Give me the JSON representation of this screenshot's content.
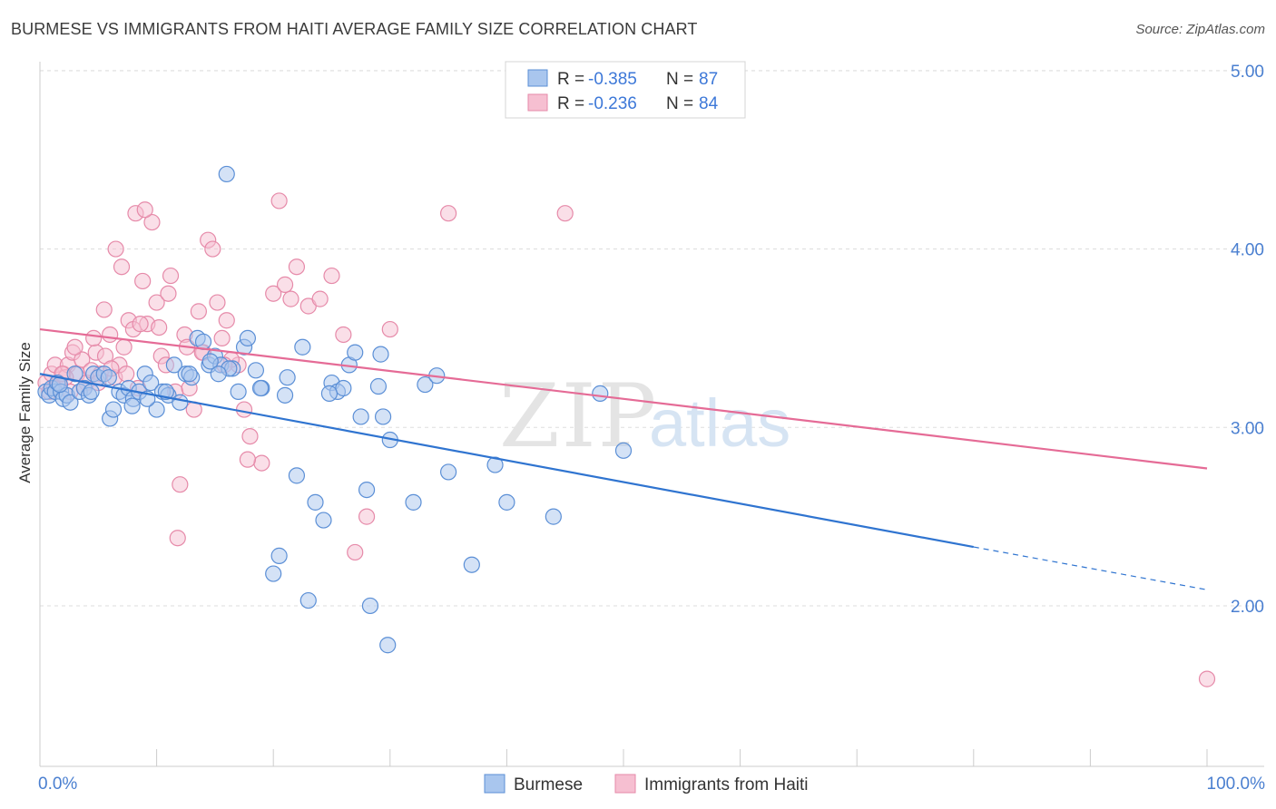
{
  "title": "BURMESE VS IMMIGRANTS FROM HAITI AVERAGE FAMILY SIZE CORRELATION CHART",
  "source": "Source: ZipAtlas.com",
  "watermark": {
    "part1": "ZIP",
    "part2": "atlas"
  },
  "colors": {
    "blue_fill": "#a9c6ee",
    "blue_stroke": "#5b8fd6",
    "blue_line": "#2f74d0",
    "pink_fill": "#f6bfd1",
    "pink_stroke": "#e68aa9",
    "pink_line": "#e56b96",
    "tick_label": "#4a7fd0",
    "grid": "#dddddd"
  },
  "legend": {
    "rows": [
      {
        "r_label": "R = ",
        "r_value": "-0.385",
        "n_label": "N = ",
        "n_value": "87",
        "color": "blue"
      },
      {
        "r_label": "R = ",
        "r_value": "-0.236",
        "n_label": "N = ",
        "n_value": "84",
        "color": "pink"
      }
    ]
  },
  "chart_data": {
    "type": "scatter",
    "title": "BURMESE VS IMMIGRANTS FROM HAITI AVERAGE FAMILY SIZE CORRELATION CHART",
    "xlabel": "",
    "ylabel": "Average Family Size",
    "x_tick_labels": [
      "0.0%",
      "100.0%"
    ],
    "y_ticks": [
      2.0,
      3.0,
      4.0,
      5.0
    ],
    "y_tick_labels": [
      "2.00",
      "3.00",
      "4.00",
      "5.00"
    ],
    "xlim": [
      0,
      100
    ],
    "ylim": [
      1.1,
      5.05
    ],
    "grid": "horizontal dashed",
    "legend_position": "top-center",
    "series": [
      {
        "name": "Burmese",
        "color": "blue",
        "trend": {
          "x0": 0,
          "y0": 3.3,
          "x1": 80,
          "y1": 2.33,
          "dashed_to_x": 100,
          "dashed_to_y": 2.09
        },
        "points": [
          [
            0.5,
            3.2
          ],
          [
            0.8,
            3.18
          ],
          [
            1.0,
            3.22
          ],
          [
            1.3,
            3.2
          ],
          [
            1.5,
            3.25
          ],
          [
            1.8,
            3.2
          ],
          [
            2.0,
            3.16
          ],
          [
            2.3,
            3.18
          ],
          [
            2.6,
            3.14
          ],
          [
            3.0,
            3.3
          ],
          [
            3.4,
            3.2
          ],
          [
            3.8,
            3.22
          ],
          [
            4.2,
            3.18
          ],
          [
            4.6,
            3.3
          ],
          [
            5.0,
            3.28
          ],
          [
            5.5,
            3.3
          ],
          [
            6.0,
            3.05
          ],
          [
            6.3,
            3.1
          ],
          [
            6.8,
            3.2
          ],
          [
            7.2,
            3.18
          ],
          [
            7.6,
            3.22
          ],
          [
            8.0,
            3.16
          ],
          [
            8.5,
            3.2
          ],
          [
            9.0,
            3.3
          ],
          [
            9.5,
            3.25
          ],
          [
            10.0,
            3.1
          ],
          [
            10.5,
            3.2
          ],
          [
            11.0,
            3.18
          ],
          [
            11.5,
            3.35
          ],
          [
            12.0,
            3.14
          ],
          [
            12.5,
            3.3
          ],
          [
            13.0,
            3.28
          ],
          [
            13.5,
            3.5
          ],
          [
            14.0,
            3.48
          ],
          [
            14.5,
            3.35
          ],
          [
            15.0,
            3.4
          ],
          [
            15.5,
            3.35
          ],
          [
            16.0,
            4.42
          ],
          [
            16.5,
            3.33
          ],
          [
            17.0,
            3.2
          ],
          [
            17.5,
            3.45
          ],
          [
            17.8,
            3.5
          ],
          [
            18.5,
            3.32
          ],
          [
            19.0,
            3.22
          ],
          [
            20.0,
            2.18
          ],
          [
            20.5,
            2.28
          ],
          [
            21.0,
            3.18
          ],
          [
            22.0,
            2.73
          ],
          [
            22.5,
            3.45
          ],
          [
            23.0,
            2.03
          ],
          [
            23.6,
            2.58
          ],
          [
            24.3,
            2.48
          ],
          [
            25.0,
            3.25
          ],
          [
            25.5,
            3.2
          ],
          [
            26.0,
            3.22
          ],
          [
            26.5,
            3.35
          ],
          [
            27.0,
            3.42
          ],
          [
            27.5,
            3.06
          ],
          [
            28.0,
            2.65
          ],
          [
            28.3,
            2.0
          ],
          [
            29.0,
            3.23
          ],
          [
            29.2,
            3.41
          ],
          [
            29.4,
            3.06
          ],
          [
            29.8,
            1.78
          ],
          [
            30.0,
            2.93
          ],
          [
            32.0,
            2.58
          ],
          [
            33.0,
            3.24
          ],
          [
            34.0,
            3.29
          ],
          [
            35.0,
            2.75
          ],
          [
            37.0,
            2.23
          ],
          [
            39.0,
            2.79
          ],
          [
            40.0,
            2.58
          ],
          [
            44.0,
            2.5
          ],
          [
            48.0,
            3.19
          ],
          [
            50.0,
            2.87
          ],
          [
            14.6,
            3.37
          ],
          [
            16.2,
            3.33
          ],
          [
            10.8,
            3.2
          ],
          [
            5.9,
            3.28
          ],
          [
            4.4,
            3.2
          ],
          [
            7.9,
            3.12
          ],
          [
            9.2,
            3.16
          ],
          [
            12.8,
            3.3
          ],
          [
            15.3,
            3.3
          ],
          [
            18.9,
            3.22
          ],
          [
            21.2,
            3.28
          ],
          [
            24.8,
            3.19
          ],
          [
            1.7,
            3.24
          ]
        ]
      },
      {
        "name": "Immigrants from Haiti",
        "color": "pink",
        "trend": {
          "x0": 0,
          "y0": 3.55,
          "x1": 100,
          "y1": 2.77
        },
        "points": [
          [
            0.5,
            3.25
          ],
          [
            0.8,
            3.2
          ],
          [
            1.0,
            3.3
          ],
          [
            1.3,
            3.35
          ],
          [
            1.6,
            3.25
          ],
          [
            2.0,
            3.3
          ],
          [
            2.4,
            3.35
          ],
          [
            2.8,
            3.42
          ],
          [
            3.2,
            3.3
          ],
          [
            3.6,
            3.38
          ],
          [
            4.0,
            3.25
          ],
          [
            4.4,
            3.32
          ],
          [
            4.8,
            3.42
          ],
          [
            5.2,
            3.3
          ],
          [
            5.6,
            3.4
          ],
          [
            6.0,
            3.52
          ],
          [
            6.4,
            3.28
          ],
          [
            6.8,
            3.35
          ],
          [
            7.2,
            3.45
          ],
          [
            7.6,
            3.6
          ],
          [
            8.0,
            3.55
          ],
          [
            8.4,
            3.22
          ],
          [
            8.8,
            3.82
          ],
          [
            9.2,
            3.58
          ],
          [
            9.6,
            4.15
          ],
          [
            10.0,
            3.7
          ],
          [
            10.4,
            3.4
          ],
          [
            10.8,
            3.35
          ],
          [
            11.2,
            3.85
          ],
          [
            11.6,
            3.2
          ],
          [
            12.0,
            2.68
          ],
          [
            12.4,
            3.52
          ],
          [
            12.8,
            3.22
          ],
          [
            13.2,
            3.1
          ],
          [
            13.6,
            3.65
          ],
          [
            14.0,
            3.42
          ],
          [
            14.4,
            4.05
          ],
          [
            14.8,
            4.0
          ],
          [
            15.2,
            3.7
          ],
          [
            15.6,
            3.5
          ],
          [
            16.0,
            3.6
          ],
          [
            17.0,
            3.35
          ],
          [
            17.5,
            3.1
          ],
          [
            18.0,
            2.95
          ],
          [
            19.0,
            2.8
          ],
          [
            20.0,
            3.75
          ],
          [
            20.5,
            4.27
          ],
          [
            21.0,
            3.8
          ],
          [
            21.5,
            3.72
          ],
          [
            22.0,
            3.9
          ],
          [
            23.0,
            3.68
          ],
          [
            24.0,
            3.72
          ],
          [
            25.0,
            3.85
          ],
          [
            26.0,
            3.52
          ],
          [
            27.0,
            2.3
          ],
          [
            28.0,
            2.5
          ],
          [
            30.0,
            3.55
          ],
          [
            35.0,
            4.2
          ],
          [
            45.0,
            4.2
          ],
          [
            7.0,
            3.9
          ],
          [
            6.5,
            4.0
          ],
          [
            8.2,
            4.2
          ],
          [
            9.0,
            4.22
          ],
          [
            5.5,
            3.66
          ],
          [
            4.6,
            3.5
          ],
          [
            3.0,
            3.45
          ],
          [
            2.2,
            3.28
          ],
          [
            11.0,
            3.75
          ],
          [
            12.6,
            3.45
          ],
          [
            16.4,
            3.38
          ],
          [
            13.9,
            3.42
          ],
          [
            10.2,
            3.56
          ],
          [
            8.6,
            3.58
          ],
          [
            7.4,
            3.3
          ],
          [
            6.1,
            3.33
          ],
          [
            5.0,
            3.25
          ],
          [
            3.8,
            3.22
          ],
          [
            2.6,
            3.2
          ],
          [
            1.9,
            3.3
          ],
          [
            1.2,
            3.22
          ],
          [
            15.8,
            3.35
          ],
          [
            17.8,
            2.82
          ],
          [
            11.8,
            2.38
          ],
          [
            100.0,
            1.59
          ]
        ]
      }
    ]
  },
  "bottom_legend": {
    "items": [
      "Burmese",
      "Immigrants from Haiti"
    ]
  }
}
